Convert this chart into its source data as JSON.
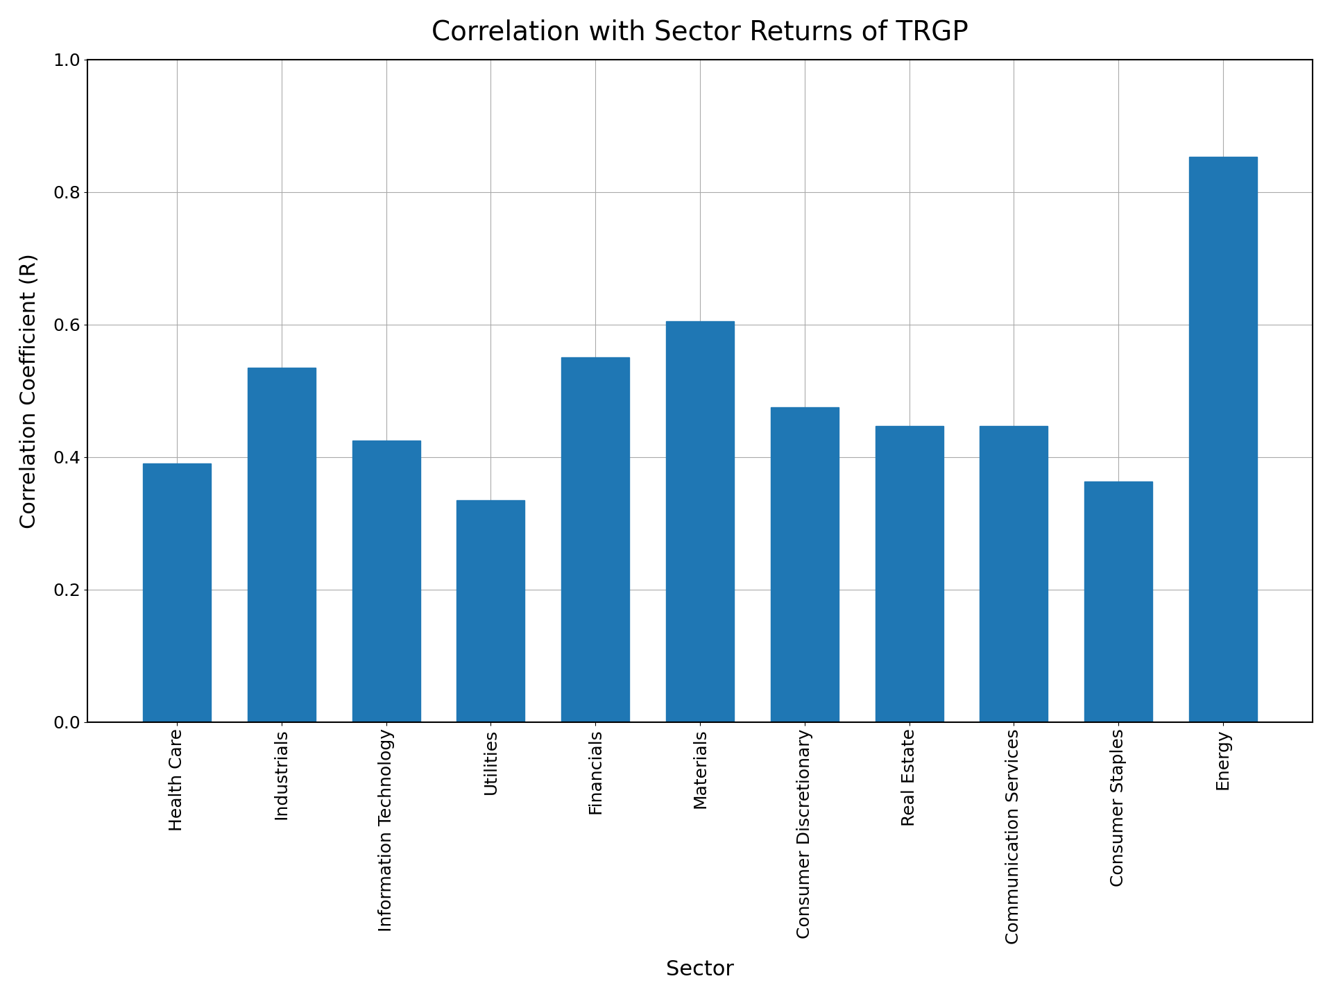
{
  "title": "Correlation with Sector Returns of TRGP",
  "xlabel": "Sector",
  "ylabel": "Correlation Coefficient (R)",
  "categories": [
    "Health Care",
    "Industrials",
    "Information Technology",
    "Utilities",
    "Financials",
    "Materials",
    "Consumer Discretionary",
    "Real Estate",
    "Communication Services",
    "Consumer Staples",
    "Energy"
  ],
  "values": [
    0.39,
    0.535,
    0.425,
    0.335,
    0.55,
    0.605,
    0.475,
    0.447,
    0.447,
    0.363,
    0.853
  ],
  "bar_color": "#1f77b4",
  "ylim": [
    0.0,
    1.0
  ],
  "yticks": [
    0.0,
    0.2,
    0.4,
    0.6,
    0.8,
    1.0
  ],
  "title_fontsize": 28,
  "axis_label_fontsize": 22,
  "tick_fontsize": 18,
  "background_color": "#ffffff",
  "grid_color": "#aaaaaa",
  "bar_width": 0.65
}
